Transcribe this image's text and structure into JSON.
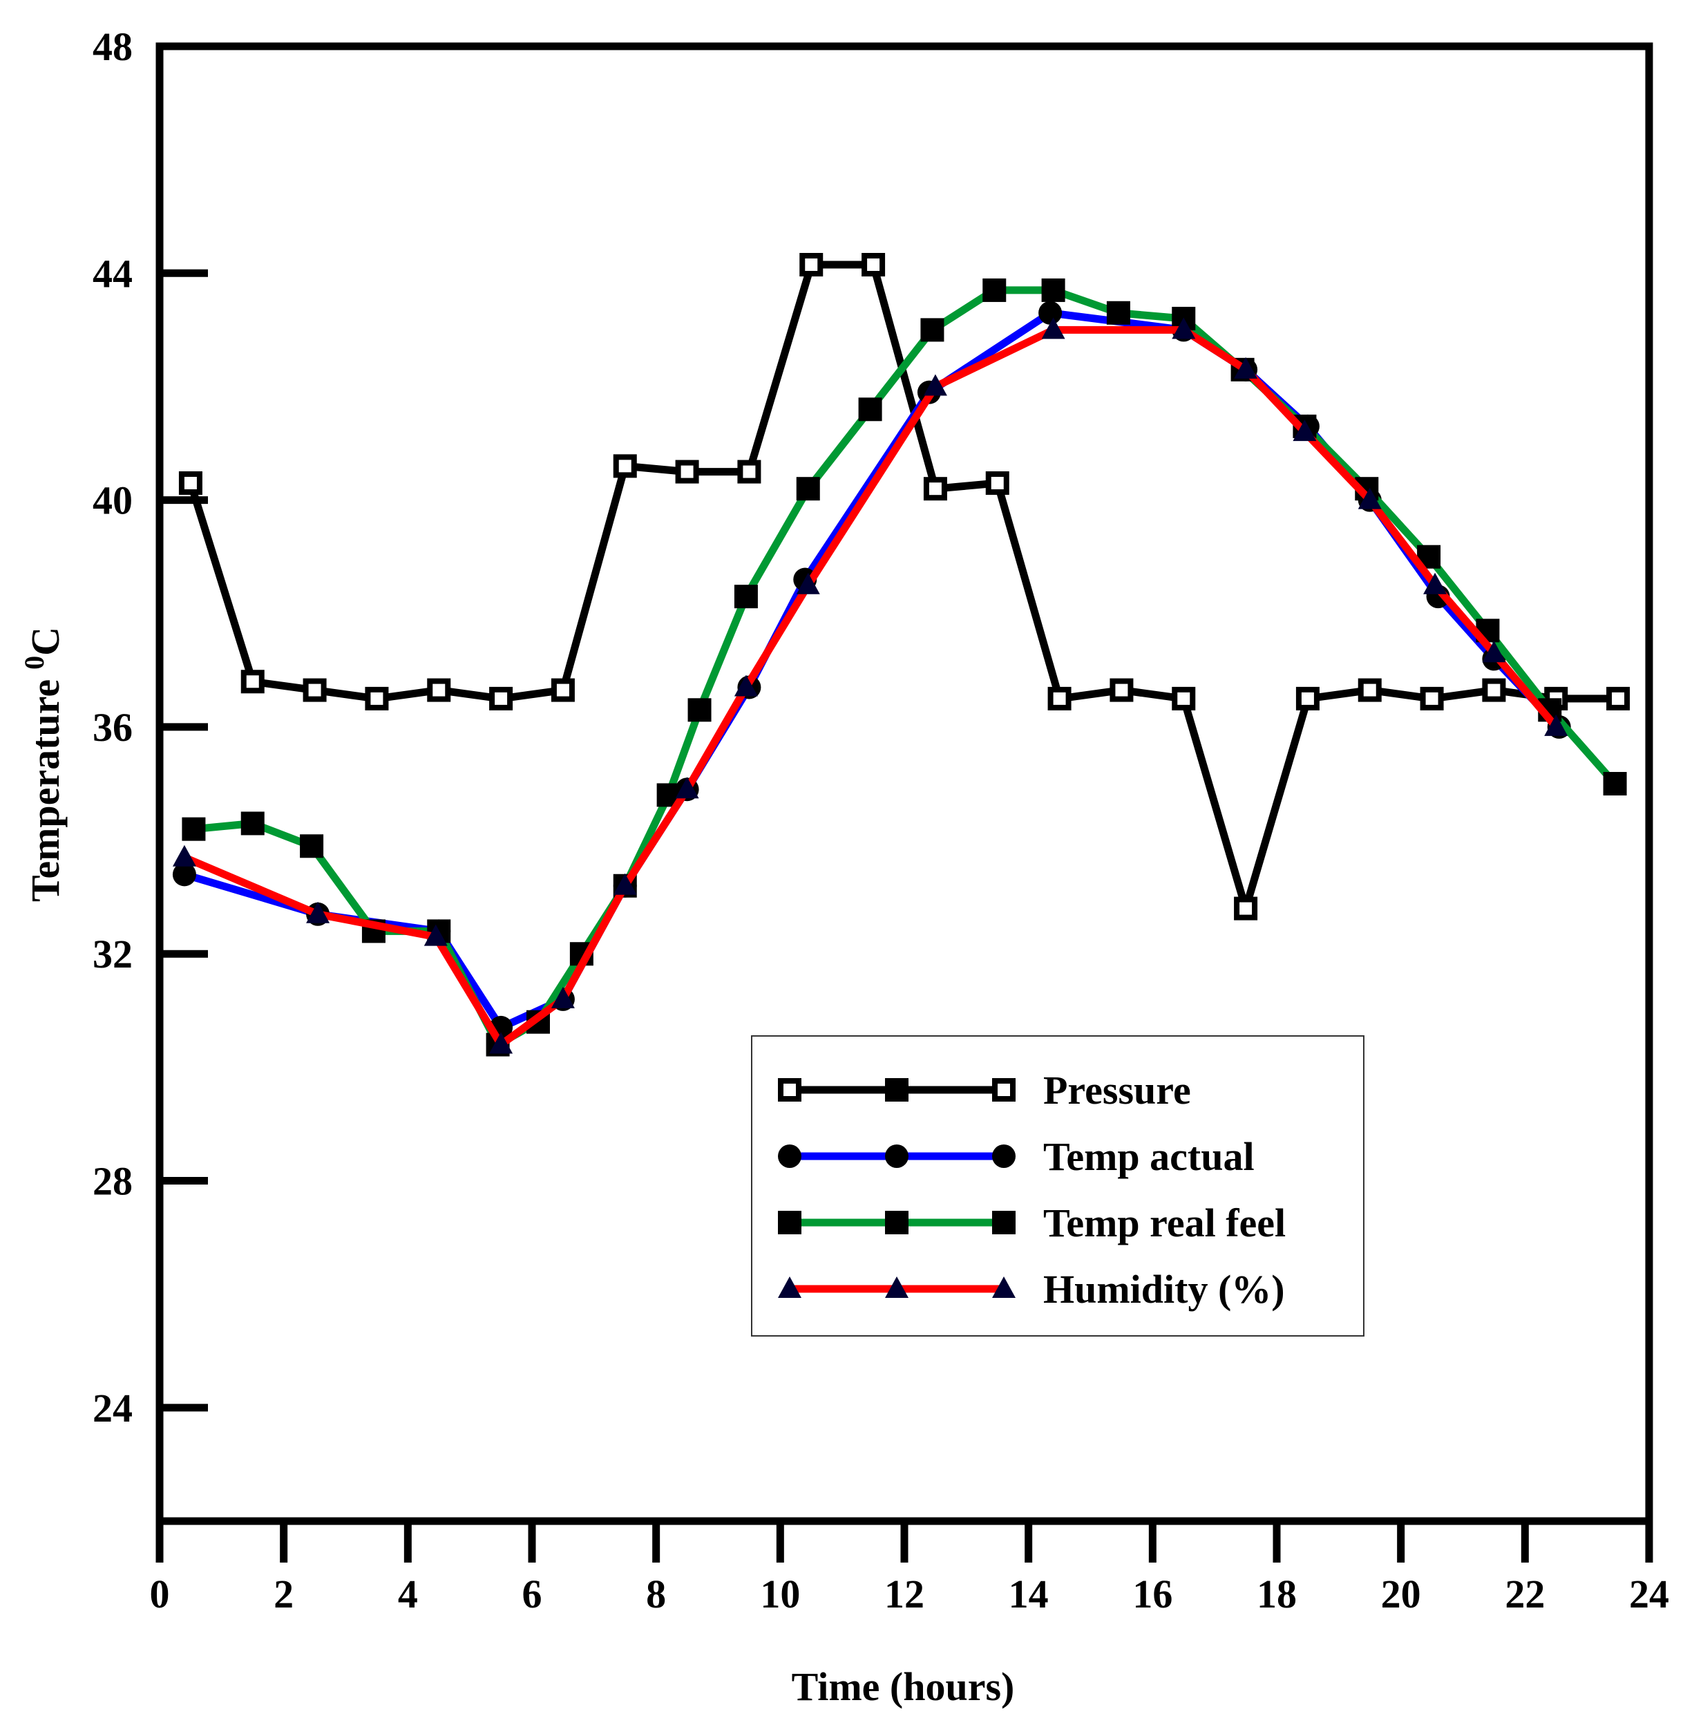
{
  "chart_data": {
    "type": "line",
    "title": "",
    "xlabel": "Time (hours)",
    "ylabel": "Temperature",
    "ylabel_sup": "0",
    "ylabel_unit": "C",
    "xlim": [
      0,
      24
    ],
    "ylim": [
      22,
      48
    ],
    "xticks": [
      0,
      2,
      4,
      6,
      8,
      10,
      12,
      14,
      16,
      18,
      20,
      22,
      24
    ],
    "xtick_labels": [
      "0",
      "2",
      "4",
      "6",
      "8",
      "10",
      "12",
      "14",
      "16",
      "18",
      "20",
      "22",
      "24"
    ],
    "yticks": [
      24,
      28,
      32,
      36,
      40,
      44,
      48
    ],
    "ytick_labels": [
      "24",
      "28",
      "32",
      "36",
      "40",
      "44",
      "48"
    ],
    "grid": false,
    "legend_position": "lower-right",
    "series": [
      {
        "name": "Pressure",
        "color": "#000000",
        "marker": "open-square",
        "x": [
          0.5,
          1.5,
          2.5,
          3.5,
          4.5,
          5.5,
          6.5,
          7.5,
          8.5,
          9.5,
          10.5,
          11.5,
          12.5,
          13.5,
          14.5,
          15.5,
          16.5,
          17.5,
          18.5,
          19.5,
          20.5,
          21.5,
          22.5,
          23.5
        ],
        "y": [
          40.3,
          36.8,
          36.65,
          36.5,
          36.65,
          36.5,
          36.65,
          40.6,
          40.5,
          40.5,
          44.15,
          44.15,
          40.2,
          40.3,
          36.5,
          36.65,
          36.5,
          32.8,
          36.5,
          36.65,
          36.5,
          36.65,
          36.5,
          36.5
        ]
      },
      {
        "name": "Temp actual",
        "color": "#0000ff",
        "marker": "circle",
        "x": [
          0.4,
          2.55,
          4.5,
          5.5,
          6.5,
          7.5,
          8.5,
          9.5,
          10.4,
          12.4,
          14.35,
          16.5,
          17.5,
          18.5,
          19.5,
          20.6,
          21.5,
          22.55
        ],
        "y": [
          33.4,
          32.7,
          32.4,
          30.7,
          31.2,
          33.2,
          34.9,
          36.7,
          38.6,
          41.9,
          43.3,
          43.0,
          42.3,
          41.3,
          40.0,
          38.3,
          37.2,
          36.0
        ]
      },
      {
        "name": "Temp real feel",
        "color": "#009933",
        "marker": "filled-square",
        "x": [
          0.55,
          1.5,
          2.45,
          3.45,
          4.5,
          5.45,
          6.1,
          6.8,
          7.5,
          8.2,
          8.7,
          9.45,
          10.45,
          11.45,
          12.45,
          13.45,
          14.4,
          15.45,
          16.5,
          17.45,
          18.45,
          19.45,
          20.45,
          21.4,
          22.4,
          23.45
        ],
        "y": [
          34.2,
          34.3,
          33.9,
          32.4,
          32.4,
          30.4,
          30.8,
          32.0,
          33.2,
          34.8,
          36.3,
          38.3,
          40.2,
          41.6,
          43.0,
          43.7,
          43.7,
          43.3,
          43.2,
          42.3,
          41.3,
          40.2,
          39.0,
          37.7,
          36.3,
          35.0
        ]
      },
      {
        "name": "Humidity (%)",
        "color": "#ff0000",
        "marker": "triangle",
        "x": [
          0.4,
          2.55,
          4.45,
          5.5,
          6.5,
          7.5,
          8.5,
          9.45,
          10.45,
          12.5,
          14.4,
          16.5,
          17.5,
          18.45,
          19.5,
          20.55,
          21.5,
          22.5
        ],
        "y": [
          33.7,
          32.7,
          32.3,
          30.4,
          31.2,
          33.2,
          34.9,
          36.7,
          38.5,
          42.0,
          43.0,
          43.0,
          42.3,
          41.2,
          40.0,
          38.5,
          37.3,
          36.0
        ]
      }
    ]
  }
}
